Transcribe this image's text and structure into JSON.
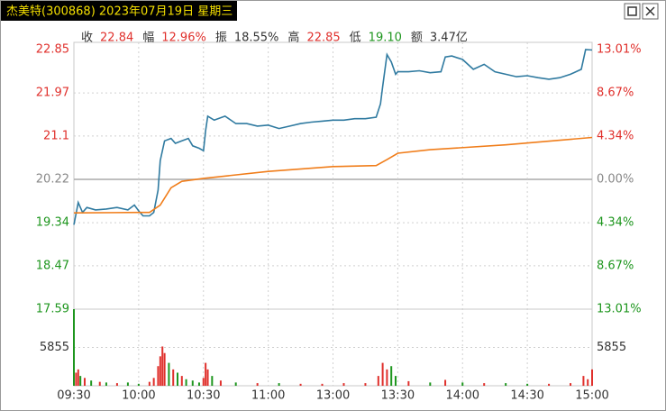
{
  "header": {
    "title": "杰美特(300868) 2023年07月19日 星期三"
  },
  "info": [
    {
      "label": "收",
      "value": "22.84",
      "color": "#e0302c"
    },
    {
      "label": "幅",
      "value": "12.96%",
      "color": "#e0302c"
    },
    {
      "label": "振",
      "value": "18.55%",
      "color": "#333333"
    },
    {
      "label": "高",
      "value": "22.85",
      "color": "#e0302c"
    },
    {
      "label": "低",
      "value": "19.10",
      "color": "#1e961e"
    },
    {
      "label": "额",
      "value": "3.47亿",
      "color": "#333333"
    }
  ],
  "chart_data": [
    {
      "type": "line",
      "ylim": [
        17.59,
        22.85
      ],
      "yticks": [
        22.85,
        21.97,
        21.1,
        20.22,
        19.34,
        18.47,
        17.59
      ],
      "y2lim": [
        -13.01,
        13.01
      ],
      "y2ticks": [
        {
          "value": 13.01,
          "label": "13.01%"
        },
        {
          "value": 8.67,
          "label": "8.67%"
        },
        {
          "value": 4.34,
          "label": "4.34%"
        },
        {
          "value": 0,
          "label": "0.00%"
        },
        {
          "value": -4.34,
          "label": "4.34%"
        },
        {
          "value": -8.67,
          "label": "8.67%"
        },
        {
          "value": -13.01,
          "label": "13.01%"
        }
      ],
      "up_color": "#e0302c",
      "down_color": "#1e961e",
      "flat_color": "#888888",
      "xlim": [
        0,
        240
      ],
      "grid": true,
      "series": [
        {
          "color": "#2f7aa0",
          "x": [
            0,
            2,
            4,
            6,
            10,
            15,
            20,
            25,
            28,
            30,
            32,
            35,
            37,
            39,
            40,
            42,
            45,
            47,
            50,
            53,
            55,
            58,
            60,
            61,
            62,
            65,
            70,
            75,
            80,
            85,
            90,
            95,
            100,
            105,
            110,
            115,
            120,
            125,
            130,
            135,
            140,
            142,
            143,
            145,
            147,
            149,
            150,
            155,
            160,
            165,
            170,
            172,
            175,
            180,
            185,
            190,
            195,
            200,
            205,
            210,
            215,
            220,
            225,
            230,
            235,
            237,
            240
          ],
          "values": [
            19.3,
            19.75,
            19.55,
            19.65,
            19.6,
            19.62,
            19.65,
            19.6,
            19.7,
            19.58,
            19.48,
            19.48,
            19.55,
            20.0,
            20.6,
            21.0,
            21.05,
            20.95,
            21.0,
            21.05,
            20.9,
            20.85,
            20.8,
            21.2,
            21.5,
            21.42,
            21.5,
            21.35,
            21.35,
            21.3,
            21.32,
            21.25,
            21.3,
            21.35,
            21.38,
            21.4,
            21.42,
            21.42,
            21.45,
            21.45,
            21.48,
            21.75,
            22.1,
            22.75,
            22.6,
            22.35,
            22.4,
            22.4,
            22.42,
            22.38,
            22.4,
            22.7,
            22.72,
            22.65,
            22.45,
            22.55,
            22.4,
            22.35,
            22.3,
            22.32,
            22.28,
            22.25,
            22.28,
            22.35,
            22.45,
            22.85,
            22.84
          ]
        },
        {
          "color": "#f07d1a",
          "x": [
            0,
            30,
            35,
            40,
            45,
            50,
            60,
            90,
            120,
            140,
            145,
            150,
            165,
            200,
            240
          ],
          "values": [
            19.54,
            19.55,
            19.55,
            19.7,
            20.05,
            20.18,
            20.24,
            20.38,
            20.48,
            20.5,
            20.62,
            20.75,
            20.82,
            20.92,
            21.07
          ]
        }
      ]
    },
    {
      "type": "bar",
      "ylim": [
        0,
        11710
      ],
      "yticks": [
        5855
      ],
      "xlim": [
        0,
        240
      ],
      "xticks": [
        {
          "value": 0,
          "label": "09:30"
        },
        {
          "value": 30,
          "label": "10:00"
        },
        {
          "value": 60,
          "label": "10:30"
        },
        {
          "value": 90,
          "label": "11:00"
        },
        {
          "value": 120,
          "label": "13:00"
        },
        {
          "value": 150,
          "label": "13:30"
        },
        {
          "value": 180,
          "label": "14:00"
        },
        {
          "value": 210,
          "label": "14:30"
        },
        {
          "value": 240,
          "label": "15:00"
        }
      ],
      "x": [
        0,
        1,
        2,
        3,
        5,
        8,
        12,
        15,
        20,
        25,
        30,
        35,
        37,
        39,
        40,
        41,
        42,
        44,
        46,
        48,
        50,
        52,
        55,
        58,
        60,
        61,
        62,
        64,
        68,
        75,
        85,
        95,
        105,
        115,
        125,
        135,
        141,
        143,
        145,
        147,
        149,
        155,
        165,
        172,
        180,
        190,
        200,
        210,
        220,
        230,
        236,
        238,
        240
      ],
      "values": [
        11710,
        2000,
        2500,
        1500,
        1200,
        800,
        600,
        500,
        400,
        500,
        300,
        600,
        1200,
        3000,
        4500,
        6000,
        5000,
        3500,
        2500,
        2000,
        1500,
        1000,
        800,
        500,
        1200,
        3500,
        2500,
        1500,
        800,
        500,
        400,
        400,
        300,
        300,
        400,
        400,
        1500,
        3500,
        2500,
        3000,
        1500,
        700,
        500,
        900,
        500,
        400,
        400,
        300,
        300,
        400,
        1500,
        1000,
        2500
      ],
      "colors": [
        "#1e961e",
        "#e0302c",
        "#e0302c",
        "#1e961e",
        "#e0302c",
        "#1e961e",
        "#e0302c",
        "#1e961e",
        "#e0302c",
        "#1e961e",
        "#1e961e",
        "#e0302c",
        "#e0302c",
        "#e0302c",
        "#e0302c",
        "#e0302c",
        "#e0302c",
        "#1e961e",
        "#e0302c",
        "#1e961e",
        "#e0302c",
        "#1e961e",
        "#1e961e",
        "#1e961e",
        "#e0302c",
        "#e0302c",
        "#e0302c",
        "#1e961e",
        "#e0302c",
        "#1e961e",
        "#e0302c",
        "#1e961e",
        "#e0302c",
        "#e0302c",
        "#e0302c",
        "#e0302c",
        "#e0302c",
        "#e0302c",
        "#e0302c",
        "#1e961e",
        "#1e961e",
        "#e0302c",
        "#1e961e",
        "#e0302c",
        "#1e961e",
        "#e0302c",
        "#1e961e",
        "#1e961e",
        "#e0302c",
        "#e0302c",
        "#e0302c",
        "#e0302c",
        "#e0302c"
      ]
    }
  ]
}
